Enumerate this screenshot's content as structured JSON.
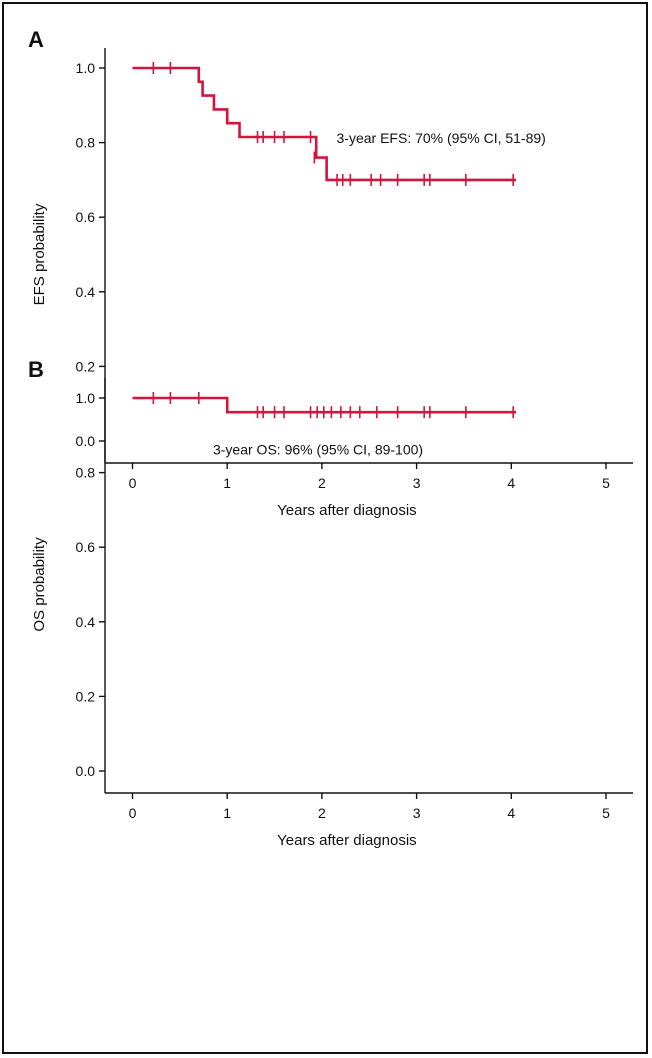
{
  "chart_data": [
    {
      "type": "line",
      "panel_label": "A",
      "xlabel": "Years after diagnosis",
      "ylabel": "EFS probability",
      "xlim": [
        0,
        5
      ],
      "ylim": [
        0,
        1
      ],
      "xticks": [
        "0",
        "1",
        "2",
        "3",
        "4",
        "5"
      ],
      "yticks": [
        "0.0",
        "0.2",
        "0.4",
        "0.6",
        "0.8",
        "1.0"
      ],
      "color": "#d4143c",
      "steps": [
        [
          0,
          1.0
        ],
        [
          0.7,
          0.963
        ],
        [
          0.74,
          0.926
        ],
        [
          0.86,
          0.889
        ],
        [
          1.0,
          0.852
        ],
        [
          1.13,
          0.815
        ],
        [
          1.94,
          0.76
        ],
        [
          2.05,
          0.7
        ],
        [
          4.05,
          0.7
        ]
      ],
      "censored": [
        [
          0.22,
          1.0
        ],
        [
          0.4,
          1.0
        ],
        [
          1.32,
          0.815
        ],
        [
          1.38,
          0.815
        ],
        [
          1.5,
          0.815
        ],
        [
          1.6,
          0.815
        ],
        [
          1.88,
          0.815
        ],
        [
          1.92,
          0.76
        ],
        [
          2.16,
          0.7
        ],
        [
          2.22,
          0.7
        ],
        [
          2.3,
          0.7
        ],
        [
          2.52,
          0.7
        ],
        [
          2.62,
          0.7
        ],
        [
          2.8,
          0.7
        ],
        [
          3.08,
          0.7
        ],
        [
          3.14,
          0.7
        ],
        [
          3.52,
          0.7
        ],
        [
          4.02,
          0.7
        ]
      ],
      "annotation": "3-year EFS: 70% (95% CI, 51-89)",
      "annotation_at": [
        2.07,
        0.815
      ]
    },
    {
      "type": "line",
      "panel_label": "B",
      "xlabel": "Years after diagnosis",
      "ylabel": "OS probability",
      "xlim": [
        0,
        5
      ],
      "ylim": [
        0,
        1
      ],
      "xticks": [
        "0",
        "1",
        "2",
        "3",
        "4",
        "5"
      ],
      "yticks": [
        "0.0",
        "0.2",
        "0.4",
        "0.6",
        "0.8",
        "1.0"
      ],
      "color": "#d4143c",
      "steps": [
        [
          0,
          1.0
        ],
        [
          1.0,
          0.962
        ],
        [
          4.05,
          0.962
        ]
      ],
      "censored": [
        [
          0.22,
          1.0
        ],
        [
          0.4,
          1.0
        ],
        [
          0.7,
          1.0
        ],
        [
          1.32,
          0.962
        ],
        [
          1.38,
          0.962
        ],
        [
          1.5,
          0.962
        ],
        [
          1.6,
          0.962
        ],
        [
          1.88,
          0.962
        ],
        [
          1.95,
          0.962
        ],
        [
          2.02,
          0.962
        ],
        [
          2.1,
          0.962
        ],
        [
          2.2,
          0.962
        ],
        [
          2.3,
          0.962
        ],
        [
          2.4,
          0.962
        ],
        [
          2.58,
          0.962
        ],
        [
          2.8,
          0.962
        ],
        [
          3.08,
          0.962
        ],
        [
          3.14,
          0.962
        ],
        [
          3.52,
          0.962
        ],
        [
          4.02,
          0.962
        ]
      ],
      "annotation": "3-year OS: 96% (95% CI, 89-100)",
      "annotation_at": [
        0.85,
        0.865
      ]
    }
  ]
}
